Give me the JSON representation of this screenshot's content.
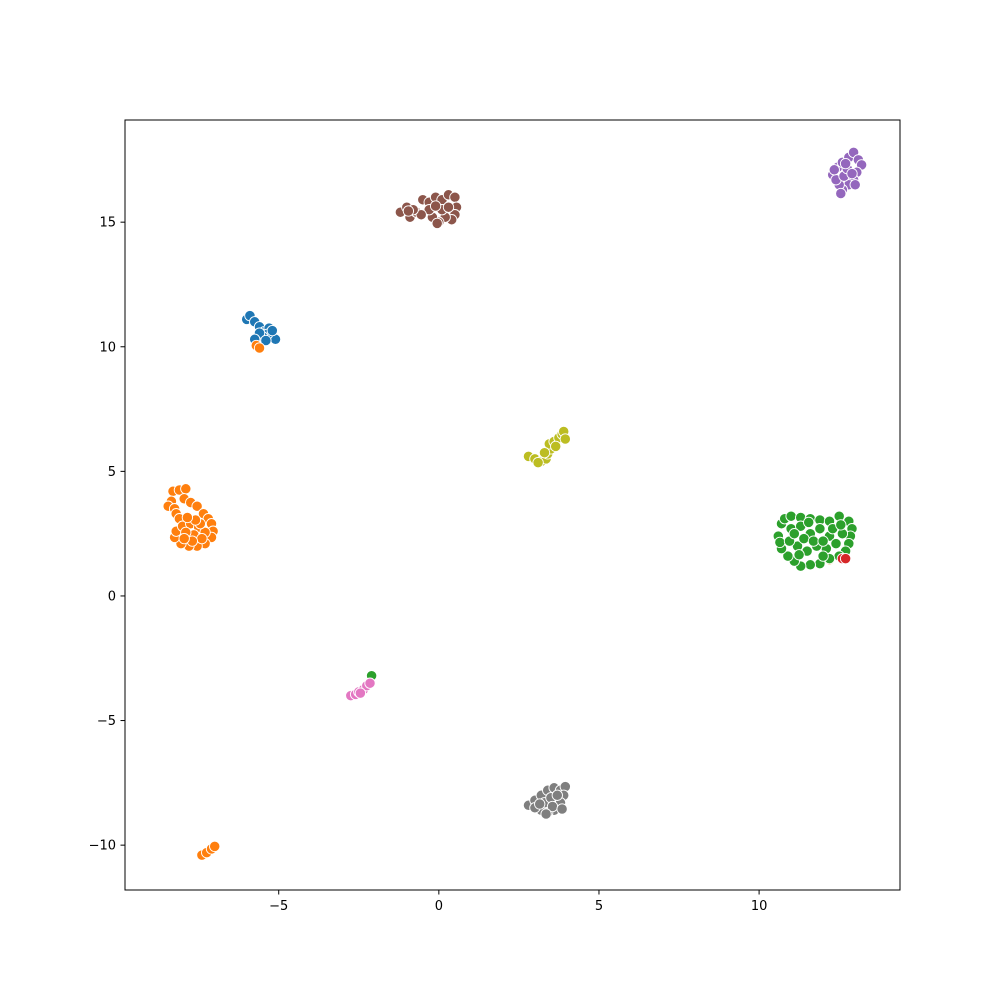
{
  "chart_data": {
    "type": "scatter",
    "title": "",
    "xlabel": "",
    "ylabel": "",
    "xlim": [
      -9.8,
      14.4
    ],
    "ylim": [
      -11.8,
      19.1
    ],
    "grid": false,
    "legend": "none",
    "x_ticks": [
      -5,
      0,
      5,
      10
    ],
    "y_ticks": [
      -10,
      -5,
      0,
      5,
      10,
      15
    ],
    "x_tick_labels": [
      "−5",
      "0",
      "5",
      "10"
    ],
    "y_tick_labels": [
      "−10",
      "−5",
      "0",
      "5",
      "10",
      "15"
    ],
    "marker_edge_color": "#ffffff",
    "series": [
      {
        "color": "#1f77b4",
        "points": [
          [
            -6.0,
            11.1
          ],
          [
            -5.9,
            11.25
          ],
          [
            -5.75,
            11.0
          ],
          [
            -5.6,
            10.8
          ],
          [
            -5.45,
            10.6
          ],
          [
            -5.3,
            10.75
          ],
          [
            -5.2,
            10.4
          ],
          [
            -5.1,
            10.3
          ],
          [
            -5.35,
            10.5
          ],
          [
            -5.5,
            10.4
          ],
          [
            -5.6,
            10.55
          ],
          [
            -5.75,
            10.3
          ],
          [
            -5.4,
            10.25
          ],
          [
            -5.2,
            10.65
          ]
        ]
      },
      {
        "color": "#ff7f0e",
        "points": [
          [
            -8.3,
            4.2
          ],
          [
            -8.1,
            4.25
          ],
          [
            -7.9,
            4.3
          ],
          [
            -8.35,
            3.8
          ],
          [
            -8.45,
            3.6
          ],
          [
            -8.25,
            3.5
          ],
          [
            -8.2,
            3.3
          ],
          [
            -8.1,
            3.1
          ],
          [
            -7.95,
            3.9
          ],
          [
            -7.75,
            3.75
          ],
          [
            -7.55,
            3.6
          ],
          [
            -7.35,
            3.3
          ],
          [
            -7.2,
            3.1
          ],
          [
            -7.1,
            2.9
          ],
          [
            -7.05,
            2.6
          ],
          [
            -7.1,
            2.35
          ],
          [
            -7.3,
            2.1
          ],
          [
            -7.55,
            2.0
          ],
          [
            -7.8,
            2.0
          ],
          [
            -8.05,
            2.1
          ],
          [
            -8.25,
            2.35
          ],
          [
            -8.2,
            2.6
          ],
          [
            -8.0,
            2.8
          ],
          [
            -7.75,
            2.9
          ],
          [
            -7.5,
            2.75
          ],
          [
            -7.3,
            2.55
          ],
          [
            -7.65,
            2.45
          ],
          [
            -7.9,
            2.55
          ],
          [
            -7.4,
            2.3
          ],
          [
            -7.7,
            2.2
          ],
          [
            -7.95,
            2.3
          ],
          [
            -7.45,
            2.9
          ],
          [
            -7.6,
            3.05
          ],
          [
            -7.85,
            3.15
          ],
          [
            -5.7,
            10.05
          ],
          [
            -5.6,
            9.95
          ],
          [
            -7.4,
            -10.4
          ],
          [
            -7.25,
            -10.3
          ],
          [
            -7.1,
            -10.15
          ],
          [
            -7.0,
            -10.05
          ],
          [
            12.2,
            1.45
          ]
        ]
      },
      {
        "color": "#2ca02c",
        "points": [
          [
            10.6,
            2.4
          ],
          [
            10.7,
            2.9
          ],
          [
            10.8,
            3.1
          ],
          [
            11.0,
            3.2
          ],
          [
            11.3,
            3.15
          ],
          [
            11.6,
            3.1
          ],
          [
            11.9,
            3.05
          ],
          [
            12.2,
            3.0
          ],
          [
            12.5,
            3.2
          ],
          [
            12.8,
            3.0
          ],
          [
            12.9,
            2.7
          ],
          [
            12.85,
            2.4
          ],
          [
            12.8,
            2.1
          ],
          [
            12.7,
            1.8
          ],
          [
            12.5,
            1.6
          ],
          [
            12.2,
            1.5
          ],
          [
            11.9,
            1.3
          ],
          [
            11.6,
            1.25
          ],
          [
            11.3,
            1.2
          ],
          [
            11.1,
            1.4
          ],
          [
            10.9,
            1.6
          ],
          [
            10.7,
            1.9
          ],
          [
            10.65,
            2.15
          ],
          [
            11.0,
            2.7
          ],
          [
            11.3,
            2.8
          ],
          [
            11.6,
            2.5
          ],
          [
            11.9,
            2.7
          ],
          [
            12.2,
            2.4
          ],
          [
            12.4,
            2.1
          ],
          [
            12.1,
            1.9
          ],
          [
            11.8,
            2.0
          ],
          [
            11.5,
            1.8
          ],
          [
            11.2,
            2.0
          ],
          [
            10.95,
            2.2
          ],
          [
            11.4,
            2.3
          ],
          [
            11.7,
            2.2
          ],
          [
            12.0,
            2.2
          ],
          [
            12.3,
            2.7
          ],
          [
            12.6,
            2.5
          ],
          [
            11.1,
            2.5
          ],
          [
            11.55,
            2.95
          ],
          [
            12.0,
            1.6
          ],
          [
            11.25,
            1.65
          ],
          [
            12.55,
            2.85
          ],
          [
            -2.1,
            -3.2
          ]
        ]
      },
      {
        "color": "#d62728",
        "points": [
          [
            12.6,
            1.5
          ],
          [
            12.7,
            1.5
          ]
        ]
      },
      {
        "color": "#9467bd",
        "points": [
          [
            12.3,
            16.9
          ],
          [
            12.45,
            17.2
          ],
          [
            12.6,
            17.4
          ],
          [
            12.8,
            17.6
          ],
          [
            12.95,
            17.8
          ],
          [
            13.1,
            17.5
          ],
          [
            13.2,
            17.3
          ],
          [
            13.05,
            17.0
          ],
          [
            12.95,
            16.7
          ],
          [
            12.8,
            16.5
          ],
          [
            12.6,
            16.3
          ],
          [
            12.5,
            16.5
          ],
          [
            12.4,
            16.7
          ],
          [
            12.65,
            16.85
          ],
          [
            12.75,
            17.15
          ],
          [
            12.9,
            16.95
          ],
          [
            13.0,
            16.5
          ],
          [
            12.55,
            16.15
          ],
          [
            12.7,
            17.35
          ],
          [
            12.35,
            17.1
          ]
        ]
      },
      {
        "color": "#8c564b",
        "points": [
          [
            -1.2,
            15.4
          ],
          [
            -1.0,
            15.6
          ],
          [
            -0.9,
            15.2
          ],
          [
            -0.7,
            15.4
          ],
          [
            -0.5,
            15.9
          ],
          [
            -0.3,
            15.8
          ],
          [
            -0.1,
            16.0
          ],
          [
            0.1,
            15.9
          ],
          [
            0.3,
            16.1
          ],
          [
            0.5,
            16.0
          ],
          [
            0.55,
            15.6
          ],
          [
            0.5,
            15.3
          ],
          [
            0.4,
            15.1
          ],
          [
            0.2,
            15.2
          ],
          [
            0.0,
            15.0
          ],
          [
            -0.2,
            15.2
          ],
          [
            -0.3,
            15.5
          ],
          [
            -0.55,
            15.3
          ],
          [
            -0.8,
            15.5
          ],
          [
            0.1,
            15.5
          ],
          [
            0.3,
            15.6
          ],
          [
            -0.1,
            15.65
          ],
          [
            -0.95,
            15.45
          ],
          [
            -0.05,
            14.95
          ]
        ]
      },
      {
        "color": "#e377c2",
        "points": [
          [
            -2.75,
            -4.0
          ],
          [
            -2.6,
            -3.95
          ],
          [
            -2.5,
            -3.85
          ],
          [
            -2.35,
            -3.75
          ],
          [
            -2.25,
            -3.6
          ],
          [
            -2.15,
            -3.5
          ],
          [
            -2.45,
            -3.9
          ]
        ]
      },
      {
        "color": "#7f7f7f",
        "points": [
          [
            2.8,
            -8.4
          ],
          [
            3.0,
            -8.2
          ],
          [
            3.2,
            -8.0
          ],
          [
            3.4,
            -7.8
          ],
          [
            3.6,
            -7.7
          ],
          [
            3.8,
            -7.8
          ],
          [
            3.95,
            -7.65
          ],
          [
            3.9,
            -8.0
          ],
          [
            3.8,
            -8.3
          ],
          [
            3.6,
            -8.6
          ],
          [
            3.4,
            -8.7
          ],
          [
            3.2,
            -8.6
          ],
          [
            3.0,
            -8.5
          ],
          [
            3.3,
            -8.3
          ],
          [
            3.5,
            -8.1
          ],
          [
            3.7,
            -8.0
          ],
          [
            3.55,
            -8.45
          ],
          [
            3.15,
            -8.35
          ],
          [
            3.85,
            -8.55
          ],
          [
            3.35,
            -8.75
          ]
        ]
      },
      {
        "color": "#bcbd22",
        "points": [
          [
            2.8,
            5.6
          ],
          [
            3.0,
            5.5
          ],
          [
            3.2,
            5.4
          ],
          [
            3.35,
            5.5
          ],
          [
            3.4,
            5.7
          ],
          [
            3.5,
            5.9
          ],
          [
            3.45,
            6.1
          ],
          [
            3.6,
            6.2
          ],
          [
            3.75,
            6.35
          ],
          [
            3.85,
            6.5
          ],
          [
            3.9,
            6.6
          ],
          [
            3.95,
            6.3
          ],
          [
            3.1,
            5.35
          ],
          [
            3.3,
            5.75
          ],
          [
            3.65,
            6.0
          ]
        ]
      }
    ]
  }
}
